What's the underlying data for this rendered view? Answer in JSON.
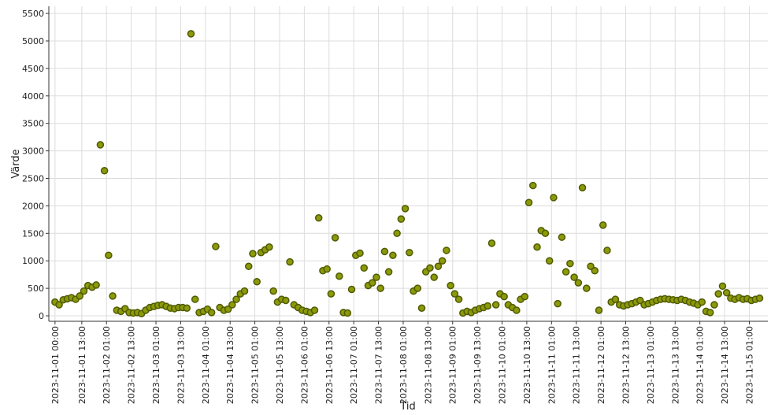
{
  "chart_data": {
    "type": "scatter",
    "x_label": "Tid",
    "y_label": "Värde",
    "color": "#8c9a0a",
    "edge_color": "#4f5a00",
    "grid": true,
    "xlim": [
      "2023-10-31 21:00",
      "2023-11-15 10:00"
    ],
    "xticks": [
      "2023-11-01 00:00",
      "2023-11-01 13:00",
      "2023-11-02 01:00",
      "2023-11-02 13:00",
      "2023-11-03 01:00",
      "2023-11-03 13:00",
      "2023-11-04 01:00",
      "2023-11-04 13:00",
      "2023-11-05 01:00",
      "2023-11-05 13:00",
      "2023-11-06 01:00",
      "2023-11-06 13:00",
      "2023-11-07 01:00",
      "2023-11-07 13:00",
      "2023-11-08 01:00",
      "2023-11-08 13:00",
      "2023-11-09 01:00",
      "2023-11-09 13:00",
      "2023-11-10 01:00",
      "2023-11-10 13:00",
      "2023-11-11 01:00",
      "2023-11-11 13:00",
      "2023-11-12 01:00",
      "2023-11-12 13:00",
      "2023-11-13 01:00",
      "2023-11-13 13:00",
      "2023-11-14 01:00",
      "2023-11-14 13:00",
      "2023-11-15 01:00"
    ],
    "ylim": [
      -100,
      5630
    ],
    "yticks": [
      0,
      500,
      1000,
      1500,
      2000,
      2500,
      3000,
      3500,
      4000,
      4500,
      5000,
      5500
    ],
    "x": [
      "2023-11-01 00:00",
      "2023-11-01 02:00",
      "2023-11-01 04:00",
      "2023-11-01 06:00",
      "2023-11-01 08:00",
      "2023-11-01 10:00",
      "2023-11-01 12:00",
      "2023-11-01 14:00",
      "2023-11-01 16:00",
      "2023-11-01 18:00",
      "2023-11-01 20:00",
      "2023-11-01 22:00",
      "2023-11-02 00:00",
      "2023-11-02 02:00",
      "2023-11-02 04:00",
      "2023-11-02 06:00",
      "2023-11-02 08:00",
      "2023-11-02 10:00",
      "2023-11-02 12:00",
      "2023-11-02 14:00",
      "2023-11-02 16:00",
      "2023-11-02 18:00",
      "2023-11-02 20:00",
      "2023-11-02 22:00",
      "2023-11-03 00:00",
      "2023-11-03 02:00",
      "2023-11-03 04:00",
      "2023-11-03 06:00",
      "2023-11-03 08:00",
      "2023-11-03 10:00",
      "2023-11-03 12:00",
      "2023-11-03 14:00",
      "2023-11-03 16:00",
      "2023-11-03 18:00",
      "2023-11-03 20:00",
      "2023-11-03 22:00",
      "2023-11-04 00:00",
      "2023-11-04 02:00",
      "2023-11-04 04:00",
      "2023-11-04 06:00",
      "2023-11-04 08:00",
      "2023-11-04 10:00",
      "2023-11-04 12:00",
      "2023-11-04 14:00",
      "2023-11-04 16:00",
      "2023-11-04 18:00",
      "2023-11-04 20:00",
      "2023-11-04 22:00",
      "2023-11-05 00:00",
      "2023-11-05 02:00",
      "2023-11-05 04:00",
      "2023-11-05 06:00",
      "2023-11-05 08:00",
      "2023-11-05 10:00",
      "2023-11-05 12:00",
      "2023-11-05 14:00",
      "2023-11-05 16:00",
      "2023-11-05 18:00",
      "2023-11-05 20:00",
      "2023-11-05 22:00",
      "2023-11-06 00:00",
      "2023-11-06 02:00",
      "2023-11-06 04:00",
      "2023-11-06 06:00",
      "2023-11-06 08:00",
      "2023-11-06 10:00",
      "2023-11-06 12:00",
      "2023-11-06 14:00",
      "2023-11-06 16:00",
      "2023-11-06 18:00",
      "2023-11-06 20:00",
      "2023-11-06 22:00",
      "2023-11-07 00:00",
      "2023-11-07 02:00",
      "2023-11-07 04:00",
      "2023-11-07 06:00",
      "2023-11-07 08:00",
      "2023-11-07 10:00",
      "2023-11-07 12:00",
      "2023-11-07 14:00",
      "2023-11-07 16:00",
      "2023-11-07 18:00",
      "2023-11-07 20:00",
      "2023-11-07 22:00",
      "2023-11-08 00:00",
      "2023-11-08 02:00",
      "2023-11-08 04:00",
      "2023-11-08 06:00",
      "2023-11-08 08:00",
      "2023-11-08 10:00",
      "2023-11-08 12:00",
      "2023-11-08 14:00",
      "2023-11-08 16:00",
      "2023-11-08 18:00",
      "2023-11-08 20:00",
      "2023-11-08 22:00",
      "2023-11-09 00:00",
      "2023-11-09 02:00",
      "2023-11-09 04:00",
      "2023-11-09 06:00",
      "2023-11-09 08:00",
      "2023-11-09 10:00",
      "2023-11-09 12:00",
      "2023-11-09 14:00",
      "2023-11-09 16:00",
      "2023-11-09 18:00",
      "2023-11-09 20:00",
      "2023-11-09 22:00",
      "2023-11-10 00:00",
      "2023-11-10 02:00",
      "2023-11-10 04:00",
      "2023-11-10 06:00",
      "2023-11-10 08:00",
      "2023-11-10 10:00",
      "2023-11-10 12:00",
      "2023-11-10 14:00",
      "2023-11-10 16:00",
      "2023-11-10 18:00",
      "2023-11-10 20:00",
      "2023-11-10 22:00",
      "2023-11-11 00:00",
      "2023-11-11 02:00",
      "2023-11-11 04:00",
      "2023-11-11 06:00",
      "2023-11-11 08:00",
      "2023-11-11 10:00",
      "2023-11-11 12:00",
      "2023-11-11 14:00",
      "2023-11-11 16:00",
      "2023-11-11 18:00",
      "2023-11-11 20:00",
      "2023-11-11 22:00",
      "2023-11-12 00:00",
      "2023-11-12 02:00",
      "2023-11-12 04:00",
      "2023-11-12 06:00",
      "2023-11-12 08:00",
      "2023-11-12 10:00",
      "2023-11-12 12:00",
      "2023-11-12 14:00",
      "2023-11-12 16:00",
      "2023-11-12 18:00",
      "2023-11-12 20:00",
      "2023-11-12 22:00",
      "2023-11-13 00:00",
      "2023-11-13 02:00",
      "2023-11-13 04:00",
      "2023-11-13 06:00",
      "2023-11-13 08:00",
      "2023-11-13 10:00",
      "2023-11-13 12:00",
      "2023-11-13 14:00",
      "2023-11-13 16:00",
      "2023-11-13 18:00",
      "2023-11-13 20:00",
      "2023-11-13 22:00",
      "2023-11-14 00:00",
      "2023-11-14 02:00",
      "2023-11-14 04:00",
      "2023-11-14 06:00",
      "2023-11-14 08:00",
      "2023-11-14 10:00",
      "2023-11-14 12:00",
      "2023-11-14 14:00",
      "2023-11-14 16:00",
      "2023-11-14 18:00",
      "2023-11-14 20:00",
      "2023-11-14 22:00",
      "2023-11-15 00:00",
      "2023-11-15 02:00",
      "2023-11-15 04:00",
      "2023-11-15 06:00"
    ],
    "values": [
      250,
      200,
      290,
      310,
      330,
      300,
      360,
      450,
      550,
      520,
      560,
      3110,
      2640,
      1100,
      360,
      100,
      80,
      130,
      60,
      50,
      60,
      40,
      100,
      150,
      170,
      190,
      200,
      170,
      140,
      130,
      150,
      150,
      140,
      5130,
      300,
      60,
      80,
      120,
      60,
      1260,
      150,
      100,
      120,
      200,
      300,
      400,
      450,
      900,
      1130,
      620,
      1150,
      1200,
      1250,
      450,
      250,
      300,
      280,
      980,
      200,
      150,
      100,
      80,
      60,
      100,
      1780,
      820,
      850,
      400,
      1420,
      720,
      60,
      50,
      480,
      1100,
      1140,
      870,
      550,
      600,
      700,
      500,
      1170,
      800,
      1100,
      1500,
      1760,
      1950,
      1150,
      450,
      500,
      140,
      800,
      870,
      700,
      900,
      1000,
      1190,
      550,
      400,
      300,
      50,
      80,
      60,
      100,
      130,
      150,
      180,
      1320,
      200,
      400,
      350,
      200,
      150,
      100,
      300,
      350,
      2060,
      2370,
      1250,
      1550,
      1500,
      1000,
      2150,
      220,
      1430,
      800,
      950,
      700,
      600,
      2330,
      500,
      900,
      820,
      100,
      1650,
      1190,
      250,
      300,
      200,
      180,
      200,
      220,
      250,
      280,
      200,
      220,
      250,
      280,
      300,
      310,
      300,
      290,
      280,
      300,
      280,
      250,
      230,
      200,
      250,
      80,
      60,
      200,
      400,
      540,
      420,
      320,
      300,
      330,
      300,
      310,
      280,
      300,
      320
    ]
  }
}
